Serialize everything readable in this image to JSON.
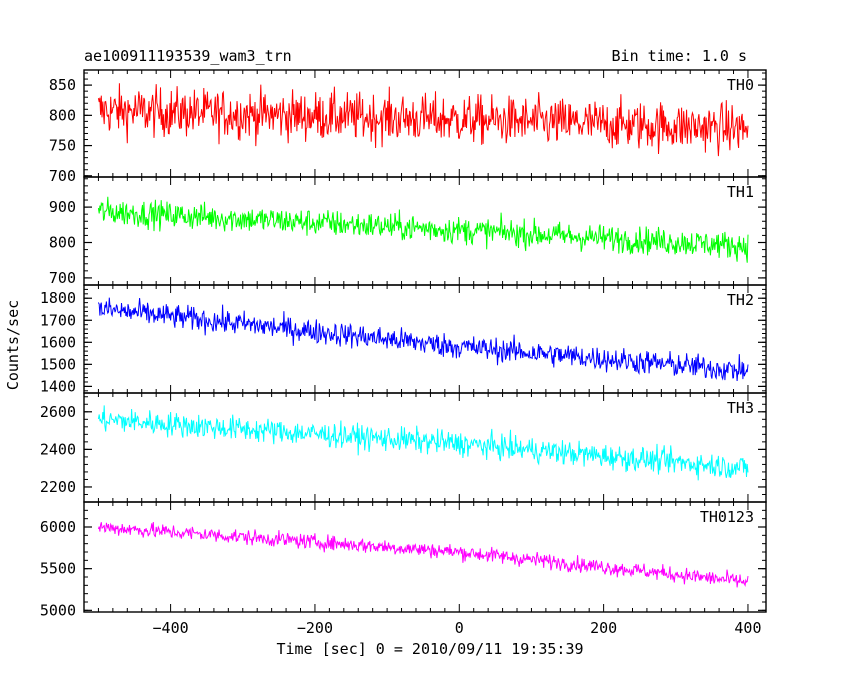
{
  "header": {
    "title": "ae100911193539_wam3_trn",
    "bin_time": "Bin time: 1.0 s"
  },
  "axes": {
    "xlabel": "Time [sec] 0 = 2010/09/11 19:35:39",
    "ylabel": "Counts/sec"
  },
  "chart_data": [
    {
      "type": "line",
      "name": "TH0",
      "color": "#ff0000",
      "xlim": [
        -520,
        425
      ],
      "ylim": [
        698,
        875
      ],
      "yticks": [
        700,
        750,
        800,
        850
      ],
      "xticks": [
        -400,
        -200,
        0,
        200,
        400
      ],
      "x_range": [
        -500,
        400
      ],
      "trend": [
        [
          -500,
          808
        ],
        [
          0,
          793
        ],
        [
          400,
          778
        ]
      ],
      "noise_amplitude": 40,
      "min_observed": 700,
      "max_observed": 875
    },
    {
      "type": "line",
      "name": "TH1",
      "color": "#00ff00",
      "xlim": [
        -520,
        425
      ],
      "ylim": [
        680,
        985
      ],
      "yticks": [
        700,
        800,
        900
      ],
      "xticks": [
        -400,
        -200,
        0,
        200,
        400
      ],
      "x_range": [
        -500,
        400
      ],
      "trend": [
        [
          -500,
          888
        ],
        [
          0,
          835
        ],
        [
          400,
          790
        ]
      ],
      "noise_amplitude": 38,
      "min_observed": 680,
      "max_observed": 985
    },
    {
      "type": "line",
      "name": "TH2",
      "color": "#0000ff",
      "xlim": [
        -520,
        425
      ],
      "ylim": [
        1370,
        1860
      ],
      "yticks": [
        1400,
        1500,
        1600,
        1700,
        1800
      ],
      "xticks": [
        -400,
        -200,
        0,
        200,
        400
      ],
      "x_range": [
        -500,
        400
      ],
      "trend": [
        [
          -500,
          1752
        ],
        [
          0,
          1580
        ],
        [
          400,
          1470
        ]
      ],
      "noise_amplitude": 55,
      "min_observed": 1400,
      "max_observed": 1860
    },
    {
      "type": "line",
      "name": "TH3",
      "color": "#00ffff",
      "xlim": [
        -520,
        425
      ],
      "ylim": [
        2120,
        2700
      ],
      "yticks": [
        2200,
        2400,
        2600
      ],
      "xticks": [
        -400,
        -200,
        0,
        200,
        400
      ],
      "x_range": [
        -500,
        400
      ],
      "trend": [
        [
          -500,
          2560
        ],
        [
          0,
          2430
        ],
        [
          400,
          2300
        ]
      ],
      "noise_amplitude": 65,
      "min_observed": 2140,
      "max_observed": 2700
    },
    {
      "type": "line",
      "name": "TH0123",
      "color": "#ff00ff",
      "xlim": [
        -520,
        425
      ],
      "ylim": [
        4980,
        6300
      ],
      "yticks": [
        5000,
        5500,
        6000
      ],
      "xticks": [
        -400,
        -200,
        0,
        200,
        400
      ],
      "x_range": [
        -500,
        400
      ],
      "trend": [
        [
          -500,
          6000
        ],
        [
          0,
          5700
        ],
        [
          400,
          5340
        ]
      ],
      "noise_amplitude": 90,
      "min_observed": 5000,
      "max_observed": 6200
    }
  ]
}
